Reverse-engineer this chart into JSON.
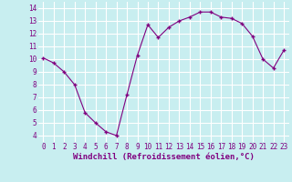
{
  "x": [
    0,
    1,
    2,
    3,
    4,
    5,
    6,
    7,
    8,
    9,
    10,
    11,
    12,
    13,
    14,
    15,
    16,
    17,
    18,
    19,
    20,
    21,
    22,
    23
  ],
  "y": [
    10.1,
    9.7,
    9.0,
    8.0,
    5.8,
    5.0,
    4.3,
    4.0,
    7.2,
    10.3,
    12.7,
    11.7,
    12.5,
    13.0,
    13.3,
    13.7,
    13.7,
    13.3,
    13.2,
    12.8,
    11.8,
    10.0,
    9.3,
    10.7
  ],
  "line_color": "#800080",
  "marker": "+",
  "marker_size": 3,
  "marker_linewidth": 1.0,
  "linewidth": 0.8,
  "xlabel": "Windchill (Refroidissement éolien,°C)",
  "xlim": [
    -0.5,
    23.5
  ],
  "ylim": [
    3.5,
    14.5
  ],
  "yticks": [
    4,
    5,
    6,
    7,
    8,
    9,
    10,
    11,
    12,
    13,
    14
  ],
  "xticks": [
    0,
    1,
    2,
    3,
    4,
    5,
    6,
    7,
    8,
    9,
    10,
    11,
    12,
    13,
    14,
    15,
    16,
    17,
    18,
    19,
    20,
    21,
    22,
    23
  ],
  "bg_color": "#c8eef0",
  "grid_color": "#ffffff",
  "label_color": "#800080",
  "font_family": "monospace",
  "xlabel_fontsize": 6.5,
  "tick_fontsize": 5.5
}
